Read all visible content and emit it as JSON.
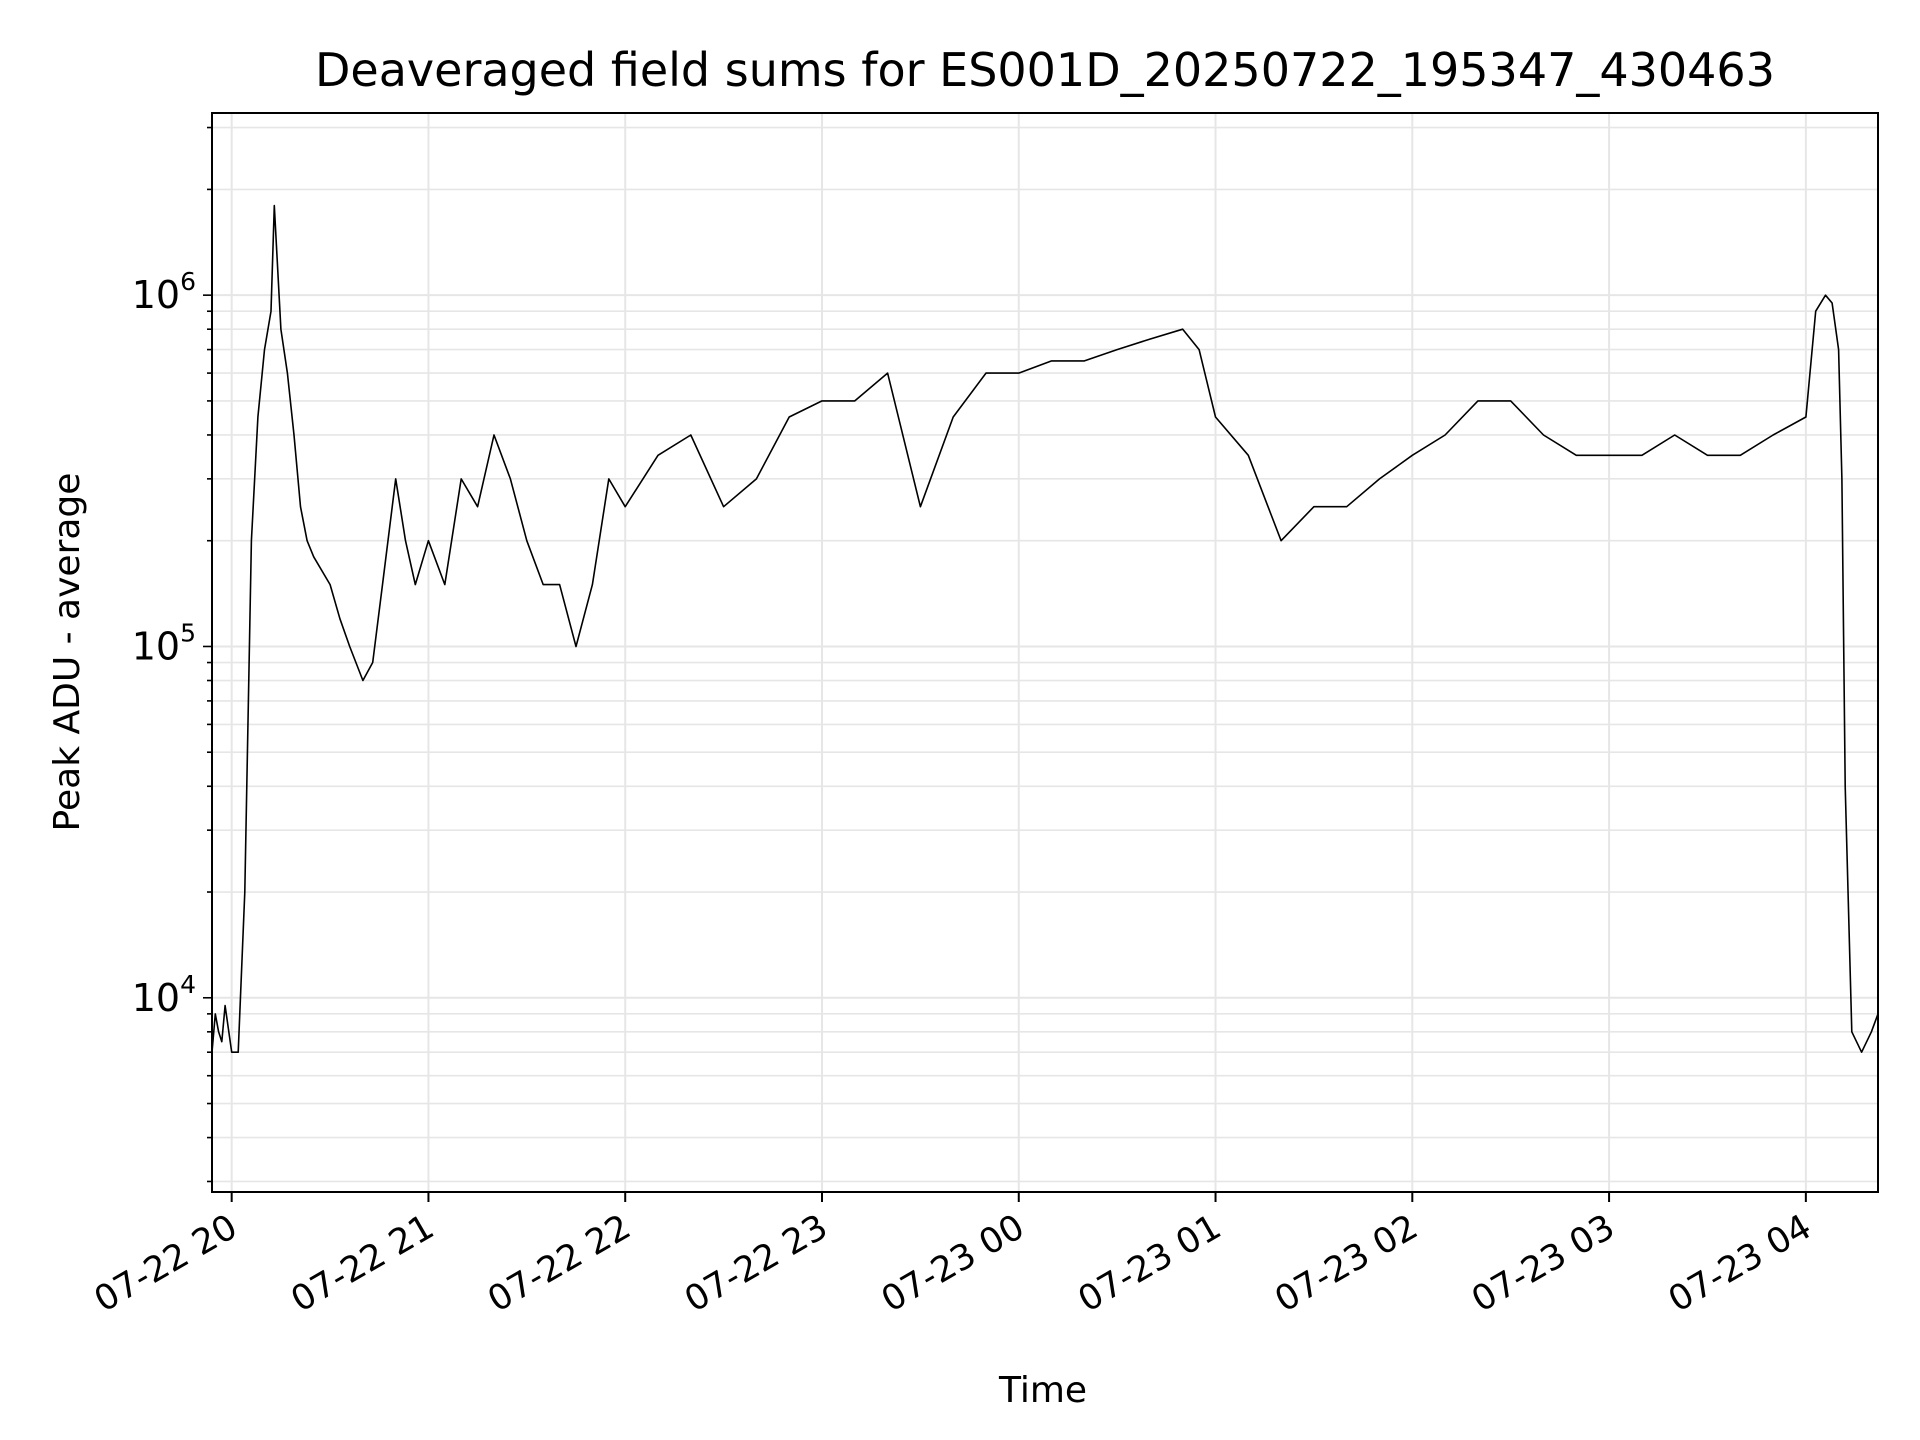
{
  "chart_data": {
    "type": "line",
    "title": "Deaveraged field sums for ES001D_20250722_195347_430463",
    "xlabel": "Time",
    "ylabel": "Peak ADU - average",
    "yscale": "log",
    "ylim": [
      2800,
      3300000
    ],
    "xlim": [
      "2025-07-22 19:54",
      "2025-07-23 04:22"
    ],
    "grid": "major and minor",
    "x_ticks": [
      "07-22 20",
      "07-22 21",
      "07-22 22",
      "07-22 23",
      "07-23 00",
      "07-23 01",
      "07-23 02",
      "07-23 03",
      "07-23 04"
    ],
    "y_ticks": [
      {
        "base": "10",
        "exp": "4",
        "value": 10000
      },
      {
        "base": "10",
        "exp": "5",
        "value": 100000
      },
      {
        "base": "10",
        "exp": "6",
        "value": 1000000
      }
    ],
    "colors": {
      "line": "#000000",
      "grid": "#e6e6e6",
      "axes": "#000000"
    },
    "series": [
      {
        "x": [
          "2025-07-22 19:54",
          "2025-07-22 19:55",
          "2025-07-22 19:56",
          "2025-07-22 19:57",
          "2025-07-22 19:58",
          "2025-07-22 20:00",
          "2025-07-22 20:02",
          "2025-07-22 20:04",
          "2025-07-22 20:06",
          "2025-07-22 20:08",
          "2025-07-22 20:10",
          "2025-07-22 20:12",
          "2025-07-22 20:13",
          "2025-07-22 20:15",
          "2025-07-22 20:17",
          "2025-07-22 20:19",
          "2025-07-22 20:21",
          "2025-07-22 20:23",
          "2025-07-22 20:25",
          "2025-07-22 20:30",
          "2025-07-22 20:33",
          "2025-07-22 20:36",
          "2025-07-22 20:40",
          "2025-07-22 20:43",
          "2025-07-22 20:46",
          "2025-07-22 20:50",
          "2025-07-22 20:53",
          "2025-07-22 20:56",
          "2025-07-22 21:00",
          "2025-07-22 21:05",
          "2025-07-22 21:10",
          "2025-07-22 21:15",
          "2025-07-22 21:20",
          "2025-07-22 21:25",
          "2025-07-22 21:30",
          "2025-07-22 21:35",
          "2025-07-22 21:40",
          "2025-07-22 21:45",
          "2025-07-22 21:50",
          "2025-07-22 21:55",
          "2025-07-22 22:00",
          "2025-07-22 22:10",
          "2025-07-22 22:20",
          "2025-07-22 22:30",
          "2025-07-22 22:40",
          "2025-07-22 22:50",
          "2025-07-22 23:00",
          "2025-07-22 23:10",
          "2025-07-22 23:20",
          "2025-07-22 23:30",
          "2025-07-22 23:40",
          "2025-07-22 23:50",
          "2025-07-23 00:00",
          "2025-07-23 00:10",
          "2025-07-23 00:20",
          "2025-07-23 00:30",
          "2025-07-23 00:40",
          "2025-07-23 00:50",
          "2025-07-23 00:55",
          "2025-07-23 01:00",
          "2025-07-23 01:10",
          "2025-07-23 01:20",
          "2025-07-23 01:30",
          "2025-07-23 01:40",
          "2025-07-23 01:50",
          "2025-07-23 02:00",
          "2025-07-23 02:10",
          "2025-07-23 02:20",
          "2025-07-23 02:30",
          "2025-07-23 02:40",
          "2025-07-23 02:50",
          "2025-07-23 03:00",
          "2025-07-23 03:10",
          "2025-07-23 03:20",
          "2025-07-23 03:30",
          "2025-07-23 03:40",
          "2025-07-23 03:50",
          "2025-07-23 04:00",
          "2025-07-23 04:03",
          "2025-07-23 04:06",
          "2025-07-23 04:08",
          "2025-07-23 04:10",
          "2025-07-23 04:11",
          "2025-07-23 04:12",
          "2025-07-23 04:14",
          "2025-07-23 04:17",
          "2025-07-23 04:20",
          "2025-07-23 04:22"
        ],
        "values": [
          7000,
          9000,
          8000,
          7500,
          9500,
          7000,
          7000,
          20000,
          200000,
          450000,
          700000,
          900000,
          1800000,
          800000,
          600000,
          400000,
          250000,
          200000,
          180000,
          150000,
          120000,
          100000,
          80000,
          90000,
          150000,
          300000,
          200000,
          150000,
          200000,
          150000,
          300000,
          250000,
          400000,
          300000,
          200000,
          150000,
          150000,
          100000,
          150000,
          300000,
          250000,
          350000,
          400000,
          250000,
          300000,
          450000,
          500000,
          500000,
          600000,
          250000,
          450000,
          600000,
          600000,
          650000,
          650000,
          700000,
          750000,
          800000,
          700000,
          450000,
          350000,
          200000,
          250000,
          250000,
          300000,
          350000,
          400000,
          500000,
          500000,
          400000,
          350000,
          350000,
          350000,
          400000,
          350000,
          350000,
          400000,
          450000,
          900000,
          1000000,
          950000,
          700000,
          300000,
          40000,
          8000,
          7000,
          8000,
          9000
        ]
      }
    ]
  }
}
